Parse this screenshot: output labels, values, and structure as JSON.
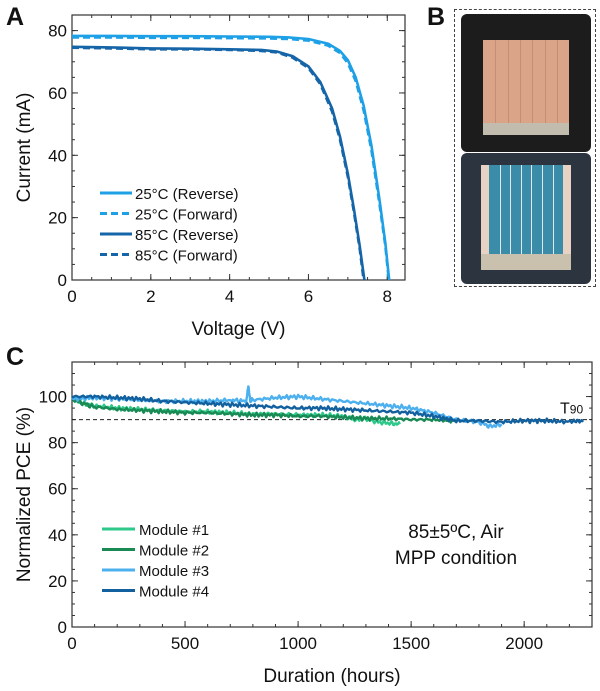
{
  "panels": {
    "a": "A",
    "b": "B",
    "c": "C"
  },
  "chart_data": [
    {
      "type": "line",
      "panel": "A",
      "title": "",
      "xlabel": "Voltage (V)",
      "ylabel": "Current (mA)",
      "xlim": [
        0,
        8.45
      ],
      "ylim": [
        0,
        85
      ],
      "xticks": [
        0,
        2,
        4,
        6,
        8
      ],
      "yticks": [
        0,
        20,
        40,
        60,
        80
      ],
      "grid": false,
      "legend": "bottom-left",
      "series": [
        {
          "name": "25°C (Reverse)",
          "color": "#1ea0e6",
          "dash": false,
          "x": [
            0,
            1,
            2,
            3,
            4,
            5,
            5.5,
            6,
            6.5,
            6.8,
            7.0,
            7.2,
            7.4,
            7.6,
            7.8,
            7.95,
            8.05
          ],
          "y": [
            78.3,
            78.3,
            78.2,
            78.2,
            78.1,
            78.0,
            77.8,
            77.3,
            75.8,
            73.5,
            70.5,
            65.0,
            56.0,
            43.0,
            26.0,
            12.0,
            0
          ]
        },
        {
          "name": "25°C (Forward)",
          "color": "#1ea0e6",
          "dash": true,
          "x": [
            0,
            1,
            2,
            3,
            4,
            5,
            5.5,
            6,
            6.5,
            6.8,
            7.0,
            7.2,
            7.4,
            7.6,
            7.8,
            7.95,
            8.04
          ],
          "y": [
            77.8,
            77.8,
            77.7,
            77.7,
            77.6,
            77.5,
            77.3,
            76.8,
            75.2,
            72.8,
            69.5,
            63.8,
            54.5,
            41.5,
            24.5,
            11.0,
            0
          ]
        },
        {
          "name": "85°C (Reverse)",
          "color": "#1565a8",
          "dash": false,
          "x": [
            0,
            1,
            2,
            3,
            4,
            4.8,
            5.2,
            5.6,
            6.0,
            6.3,
            6.6,
            6.8,
            7.0,
            7.15,
            7.3,
            7.42
          ],
          "y": [
            74.8,
            74.6,
            74.3,
            74.2,
            74.0,
            73.8,
            73.3,
            71.8,
            68.5,
            63.5,
            55.0,
            46.0,
            34.0,
            23.0,
            11.0,
            0
          ]
        },
        {
          "name": "85°C (Forward)",
          "color": "#1565a8",
          "dash": true,
          "x": [
            0,
            1,
            2,
            3,
            4,
            4.8,
            5.2,
            5.6,
            6.0,
            6.3,
            6.6,
            6.8,
            7.0,
            7.15,
            7.3,
            7.4
          ],
          "y": [
            74.5,
            74.3,
            74.0,
            74.0,
            73.8,
            73.5,
            73.0,
            71.3,
            68.0,
            62.8,
            54.0,
            45.0,
            33.0,
            22.0,
            10.0,
            0
          ]
        }
      ]
    },
    {
      "type": "line",
      "panel": "C",
      "title": "",
      "xlabel": "Duration (hours)",
      "ylabel": "Normalized PCE (%)",
      "xlim": [
        0,
        2300
      ],
      "ylim": [
        0,
        115
      ],
      "xticks": [
        0,
        500,
        1000,
        1500,
        2000
      ],
      "yticks": [
        0,
        20,
        40,
        60,
        80,
        100
      ],
      "grid": false,
      "legend": "bottom-left",
      "reference_line": {
        "y": 90,
        "label": "T",
        "label_sub": "90",
        "style": "dashed"
      },
      "annotation": [
        "85±5ºC, Air",
        "MPP condition"
      ],
      "series": [
        {
          "name": "Module #1",
          "color": "#2ec98a",
          "x": [
            0,
            50,
            100,
            200,
            300,
            400,
            500,
            600,
            700,
            800,
            900,
            1000,
            1100,
            1200,
            1250,
            1300,
            1350,
            1400,
            1450
          ],
          "y": [
            99,
            97,
            96,
            95,
            94.5,
            94,
            93.5,
            93.5,
            93,
            92.5,
            92.5,
            92,
            92,
            91.5,
            90,
            90.5,
            89,
            88.5,
            88
          ]
        },
        {
          "name": "Module #2",
          "color": "#1a8a55",
          "x": [
            0,
            50,
            100,
            200,
            300,
            400,
            500,
            600,
            700,
            800,
            900,
            1000,
            1100,
            1200,
            1300,
            1400,
            1500,
            1600,
            1700
          ],
          "y": [
            99,
            97,
            95.5,
            94.5,
            94,
            93.5,
            93,
            93,
            92.5,
            92,
            92,
            91.5,
            91.5,
            91,
            90.5,
            90.5,
            90,
            90,
            89.5
          ]
        },
        {
          "name": "Module #3",
          "color": "#4db0ee",
          "x": [
            0,
            100,
            200,
            300,
            400,
            500,
            600,
            700,
            770,
            780,
            790,
            800,
            900,
            1000,
            1100,
            1200,
            1300,
            1400,
            1500,
            1600,
            1700,
            1800,
            1850,
            1900
          ],
          "y": [
            99,
            99.5,
            99,
            98.5,
            98,
            98,
            98,
            98.5,
            98,
            104,
            98,
            98.5,
            99.5,
            100,
            99,
            98,
            97,
            96,
            95,
            93,
            90,
            89,
            87,
            88
          ]
        },
        {
          "name": "Module #4",
          "color": "#12609e",
          "x": [
            0,
            100,
            200,
            300,
            400,
            500,
            600,
            700,
            800,
            900,
            1000,
            1100,
            1200,
            1300,
            1400,
            1500,
            1600,
            1700,
            1800,
            1900,
            2000,
            2100,
            2200,
            2260
          ],
          "y": [
            100,
            100,
            99.5,
            99,
            98,
            97.5,
            97,
            96.5,
            96,
            95.5,
            95,
            95,
            94.5,
            94,
            93.5,
            93,
            91.5,
            89.5,
            89.5,
            89,
            89.5,
            89.5,
            89,
            89
          ]
        }
      ]
    }
  ],
  "photos": {
    "top_alt": "Module photo (front, copper colored)",
    "bottom_alt": "Module photo (back, blue cells)"
  }
}
